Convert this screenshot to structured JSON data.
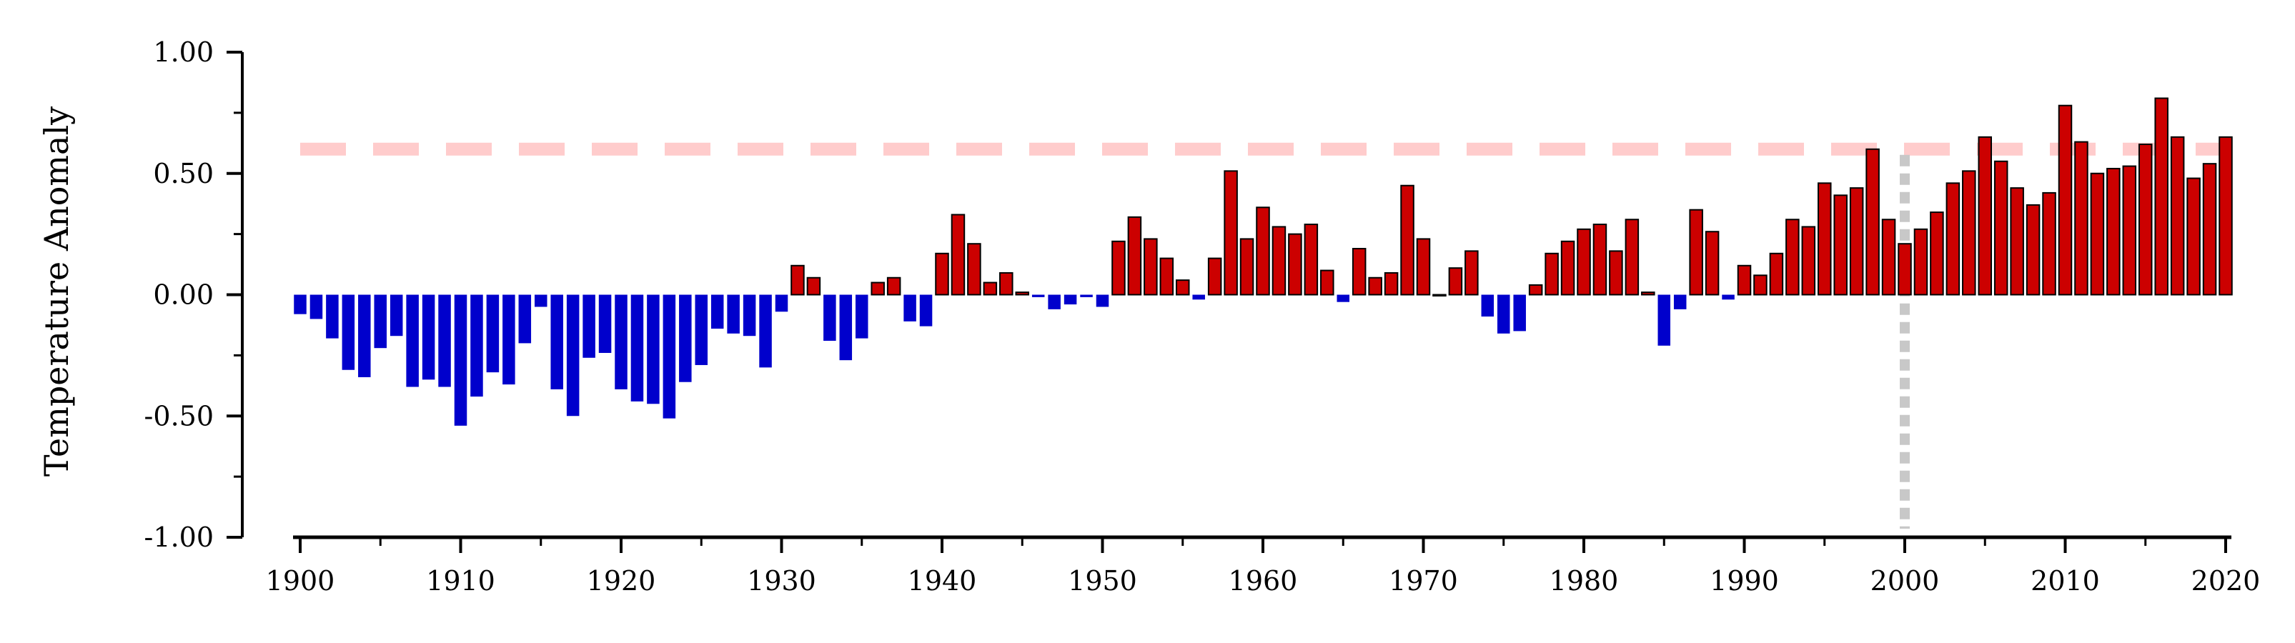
{
  "chart_data": {
    "type": "bar",
    "ylabel": "Temperature Anomaly",
    "xlabel": "",
    "title": "",
    "ylim": [
      -1.0,
      1.0
    ],
    "xlim": [
      1900,
      2020
    ],
    "x_ticks": [
      "1900",
      "1910",
      "1920",
      "1930",
      "1940",
      "1950",
      "1960",
      "1970",
      "1980",
      "1990",
      "2000",
      "2010",
      "2020"
    ],
    "y_ticks": [
      "1.00",
      "0.50",
      "0.00",
      "-0.50",
      "-1.00"
    ],
    "grid": false,
    "reference_lines": [
      {
        "orientation": "horizontal",
        "value": 0.6,
        "style": "dashed",
        "color": "#ffcccc"
      },
      {
        "orientation": "vertical",
        "value": 2000,
        "style": "dotted",
        "color": "#c8c8c8"
      }
    ],
    "colors": {
      "positive": "#cc0000",
      "negative": "#0000cc",
      "edge": "#000000"
    },
    "x": [
      1900,
      1901,
      1902,
      1903,
      1904,
      1905,
      1906,
      1907,
      1908,
      1909,
      1910,
      1911,
      1912,
      1913,
      1914,
      1915,
      1916,
      1917,
      1918,
      1919,
      1920,
      1921,
      1922,
      1923,
      1924,
      1925,
      1926,
      1927,
      1928,
      1929,
      1930,
      1931,
      1932,
      1933,
      1934,
      1935,
      1936,
      1937,
      1938,
      1939,
      1940,
      1941,
      1942,
      1943,
      1944,
      1945,
      1946,
      1947,
      1948,
      1949,
      1950,
      1951,
      1952,
      1953,
      1954,
      1955,
      1956,
      1957,
      1958,
      1959,
      1960,
      1961,
      1962,
      1963,
      1964,
      1965,
      1966,
      1967,
      1968,
      1969,
      1970,
      1971,
      1972,
      1973,
      1974,
      1975,
      1976,
      1977,
      1978,
      1979,
      1980,
      1981,
      1982,
      1983,
      1984,
      1985,
      1986,
      1987,
      1988,
      1989,
      1990,
      1991,
      1992,
      1993,
      1994,
      1995,
      1996,
      1997,
      1998,
      1999,
      2000,
      2001,
      2002,
      2003,
      2004,
      2005,
      2006,
      2007,
      2008,
      2009,
      2010,
      2011,
      2012,
      2013,
      2014,
      2015,
      2016,
      2017,
      2018,
      2019,
      2020
    ],
    "values": [
      -0.08,
      -0.1,
      -0.18,
      -0.31,
      -0.34,
      -0.22,
      -0.17,
      -0.38,
      -0.35,
      -0.38,
      -0.54,
      -0.42,
      -0.32,
      -0.37,
      -0.2,
      -0.05,
      -0.39,
      -0.5,
      -0.26,
      -0.24,
      -0.39,
      -0.44,
      -0.45,
      -0.51,
      -0.36,
      -0.29,
      -0.14,
      -0.16,
      -0.17,
      -0.3,
      -0.07,
      0.12,
      0.07,
      -0.19,
      -0.27,
      -0.18,
      0.05,
      0.07,
      -0.11,
      -0.13,
      0.17,
      0.33,
      0.21,
      0.05,
      0.09,
      0.01,
      -0.01,
      -0.06,
      -0.04,
      -0.01,
      -0.05,
      0.22,
      0.32,
      0.23,
      0.15,
      0.06,
      -0.02,
      0.15,
      0.51,
      0.23,
      0.36,
      0.28,
      0.25,
      0.29,
      0.1,
      -0.03,
      0.19,
      0.07,
      0.09,
      0.45,
      0.23,
      0.0,
      0.11,
      0.18,
      -0.09,
      -0.16,
      -0.15,
      0.04,
      0.17,
      0.22,
      0.27,
      0.29,
      0.18,
      0.31,
      0.01,
      -0.21,
      -0.06,
      0.35,
      0.26,
      -0.02,
      0.12,
      0.08,
      0.17,
      0.31,
      0.28,
      0.46,
      0.41,
      0.44,
      0.6,
      0.31,
      0.21,
      0.27,
      0.34,
      0.46,
      0.51,
      0.65,
      0.55,
      0.44,
      0.37,
      0.42,
      0.78,
      0.63,
      0.5,
      0.52,
      0.53,
      0.62,
      0.81,
      0.65,
      0.48,
      0.54,
      0.65
    ]
  }
}
